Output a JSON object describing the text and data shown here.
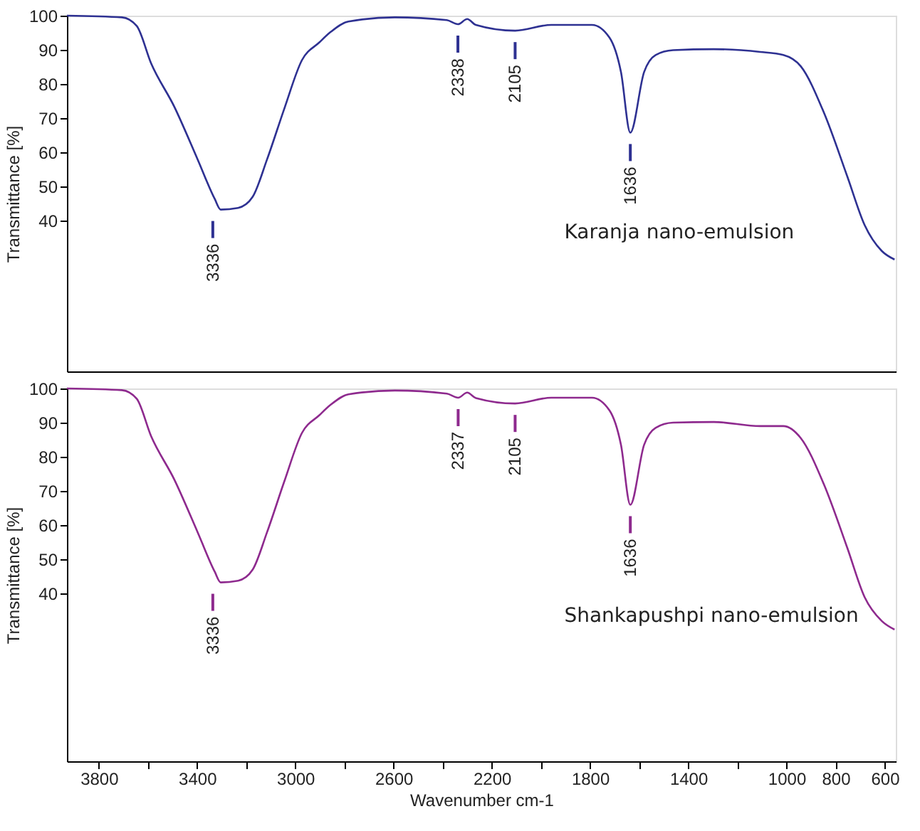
{
  "chart_data": [
    {
      "type": "line",
      "ylabel": "Transmittance [%]",
      "tick_labels": "y",
      "xlim": [
        3930,
        555
      ],
      "ylim": [
        -4,
        100
      ],
      "yticks": [
        40,
        50,
        60,
        70,
        80,
        90,
        100
      ],
      "series": [
        {
          "color": "#2e3192",
          "x": [
            3930,
            3706,
            3646,
            3587,
            3493,
            3398,
            3328,
            3304,
            3233,
            3174,
            3115,
            3044,
            2973,
            2902,
            2855,
            2784,
            2595,
            2383,
            2338,
            2300,
            2265,
            2105,
            1958,
            1792,
            1721,
            1674,
            1636,
            1580,
            1533,
            1462,
            1296,
            1107,
            1013,
            942,
            848,
            753,
            682,
            612,
            560
          ],
          "values": [
            100,
            99.5,
            97,
            86,
            73.4,
            58,
            46.4,
            43.3,
            43.8,
            47,
            58,
            73,
            87,
            92.2,
            95.3,
            98.3,
            99.5,
            98.7,
            97.5,
            99,
            97.3,
            95.6,
            97.3,
            97.3,
            93.6,
            83.5,
            65.8,
            83.5,
            88.5,
            89.9,
            90.2,
            89.4,
            88.5,
            85.2,
            71.7,
            53.1,
            38.8,
            31.2,
            28.7
          ]
        }
      ],
      "annotations": [
        {
          "text": "3336",
          "x": 3336,
          "y": 43.3
        },
        {
          "text": "2338",
          "x": 2338,
          "y": 97.5
        },
        {
          "text": "2105",
          "x": 2105,
          "y": 95.6
        },
        {
          "text": "1636",
          "x": 1636,
          "y": 65.8
        },
        "Karanja nano-emulsion"
      ]
    },
    {
      "type": "line",
      "ylabel": "Transmittance [%]",
      "xlabel": "Wavenumber cm-1",
      "xlim": [
        3930,
        555
      ],
      "ylim": [
        -9,
        100
      ],
      "yticks": [
        40,
        50,
        60,
        70,
        80,
        90,
        100
      ],
      "xticks": [
        3800,
        {
          "value": 3600,
          "label": null
        },
        3400,
        {
          "value": 3200,
          "label": null
        },
        3000,
        {
          "value": 2800,
          "label": null
        },
        2600,
        {
          "value": 2400,
          "label": null
        },
        2200,
        {
          "value": 2000,
          "label": null
        },
        1800,
        {
          "value": 1600,
          "label": null
        },
        1400,
        {
          "value": 1200,
          "label": null
        },
        1000,
        800,
        600
      ],
      "series": [
        {
          "color": "#8e2a8e",
          "x": [
            3930,
            3706,
            3646,
            3587,
            3493,
            3398,
            3328,
            3304,
            3233,
            3174,
            3115,
            3044,
            2973,
            2902,
            2855,
            2784,
            2595,
            2383,
            2337,
            2300,
            2265,
            2105,
            1958,
            1792,
            1721,
            1674,
            1636,
            1580,
            1533,
            1462,
            1296,
            1107,
            1013,
            942,
            848,
            753,
            682,
            612,
            560
          ],
          "values": [
            100,
            99.5,
            97,
            86,
            73.4,
            58,
            46.4,
            43.3,
            43.8,
            47,
            58,
            73,
            87,
            92.2,
            95.3,
            98.3,
            99.4,
            98.5,
            97.3,
            98.8,
            97.2,
            95.6,
            97.3,
            97.3,
            93.6,
            83.5,
            66,
            83.5,
            88.5,
            90,
            90.2,
            89,
            89,
            85.5,
            72,
            53.5,
            39,
            32,
            29.5
          ]
        }
      ],
      "annotations": [
        {
          "text": "3336",
          "x": 3336,
          "y": 43.3
        },
        {
          "text": "2337",
          "x": 2337,
          "y": 97.3
        },
        {
          "text": "2105",
          "x": 2105,
          "y": 95.6
        },
        {
          "text": "1636",
          "x": 1636,
          "y": 66
        },
        "Shankapushpi nano-emulsion"
      ]
    }
  ]
}
